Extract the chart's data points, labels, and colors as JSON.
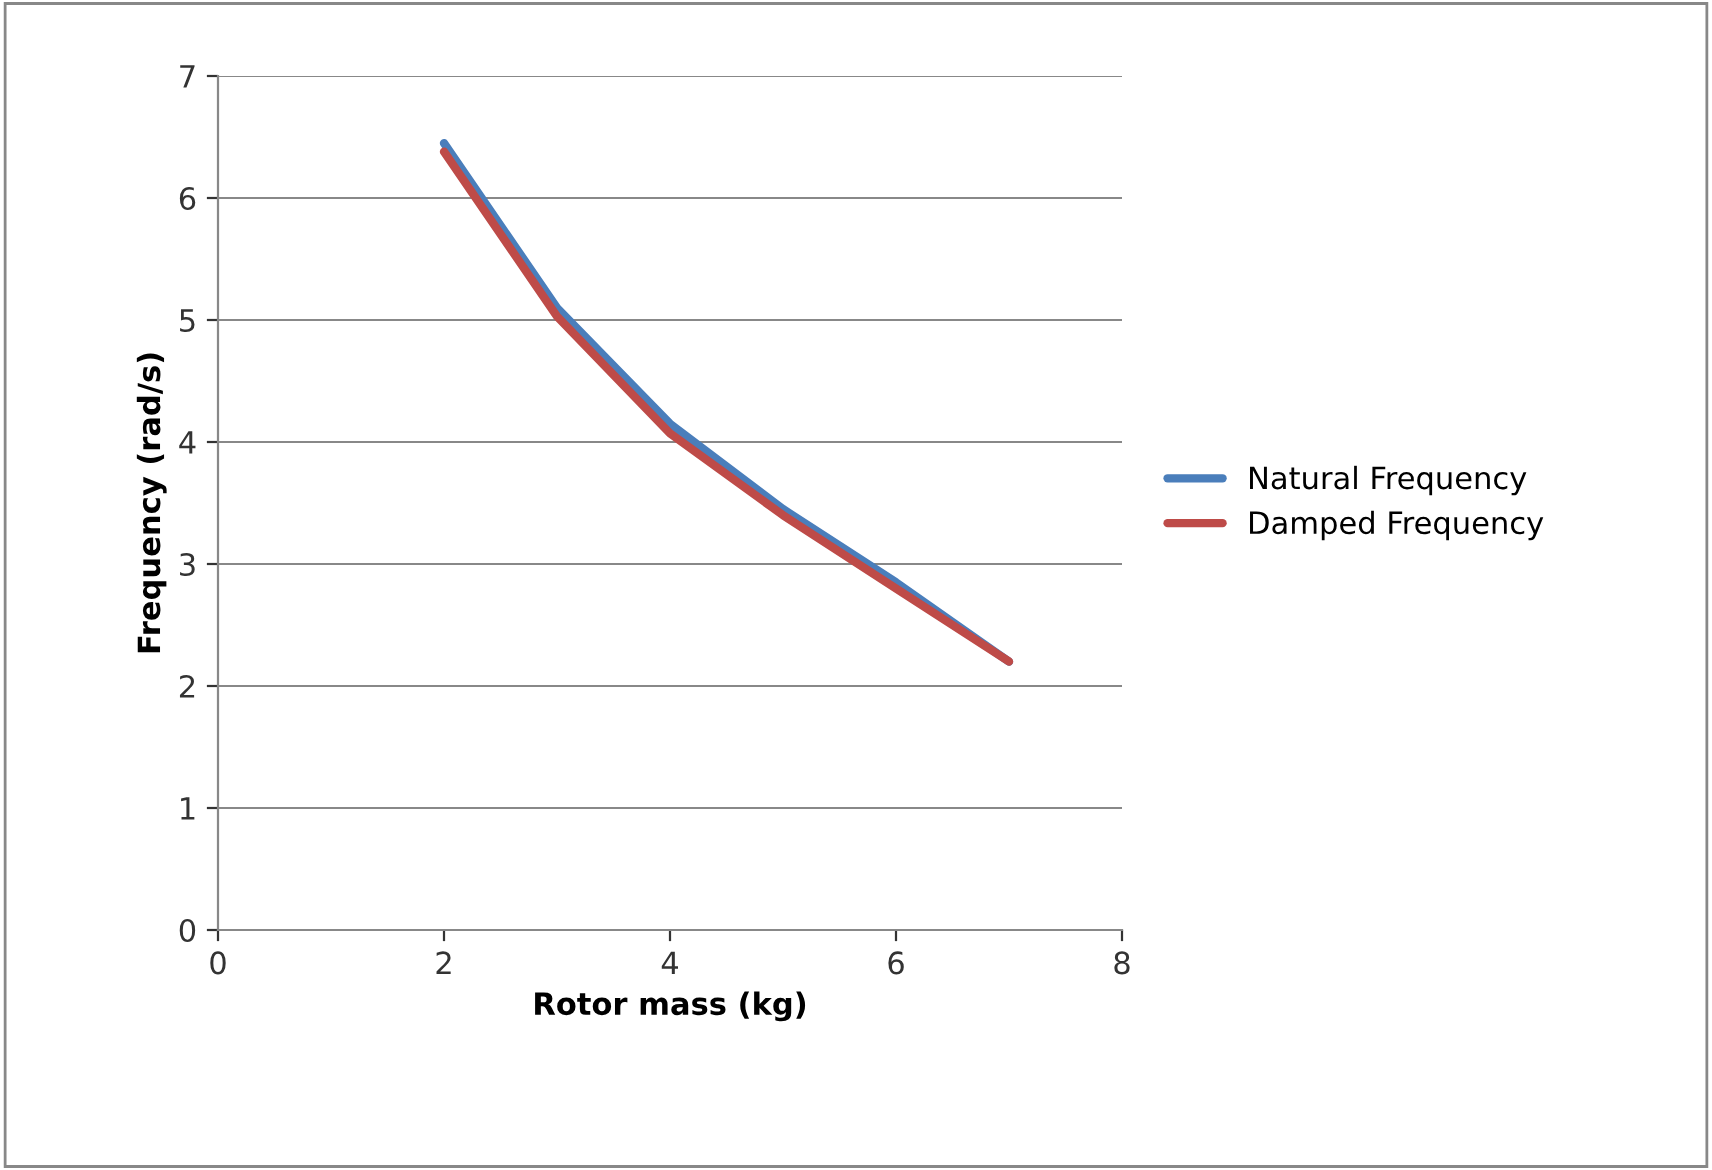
{
  "chart_data": {
    "type": "line",
    "xlabel": "Rotor mass (kg)",
    "ylabel": "Frequency (rad/s)",
    "x": [
      2,
      3,
      4,
      5,
      6,
      7
    ],
    "series": [
      {
        "name": "Natural Frequency",
        "color": "#4a7ebb",
        "values": [
          6.45,
          5.1,
          4.15,
          3.45,
          2.85,
          2.2
        ]
      },
      {
        "name": "Damped Frequency",
        "color": "#be4b48",
        "values": [
          6.38,
          5.03,
          4.07,
          3.4,
          2.8,
          2.2
        ]
      }
    ],
    "xlim": [
      0,
      8
    ],
    "xticks": [
      0,
      2,
      4,
      6,
      8
    ],
    "ylim": [
      0,
      7
    ],
    "yticks": [
      0,
      1,
      2,
      3,
      4,
      5,
      6,
      7
    ],
    "grid": "y",
    "legend": "right",
    "marker": "none",
    "line_style": "solid"
  }
}
